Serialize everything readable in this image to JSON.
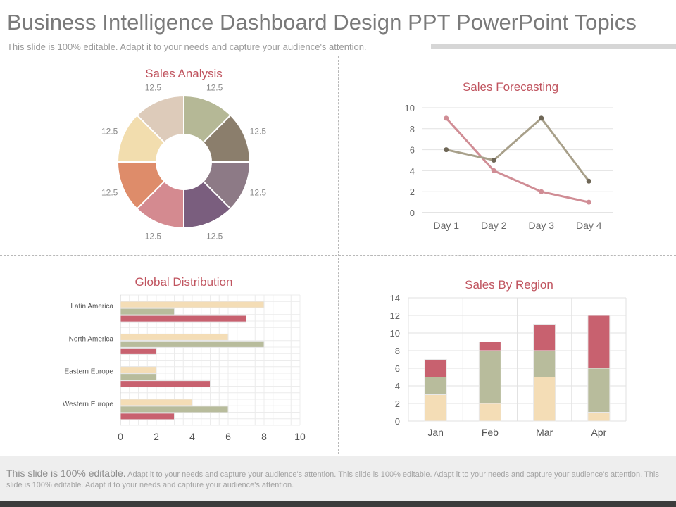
{
  "slide": {
    "title": "Business Intelligence Dashboard Design PPT PowerPoint Topics",
    "subtitle": "This slide is 100% editable. Adapt it to your needs and capture your audience's attention.",
    "footer_lead": "This slide is 100% editable.",
    "footer_rest": "Adapt it to your needs and capture your audience's attention. This slide is 100% editable. Adapt it to your needs and capture your audience's attention. This slide is 100% editable. Adapt it to your needs and capture your audience's attention."
  },
  "chart_data": [
    {
      "type": "pie",
      "title": "Sales Analysis",
      "slices": [
        {
          "value": 12.5,
          "label": "12.5",
          "color": "#b5b896"
        },
        {
          "value": 12.5,
          "label": "12.5",
          "color": "#8b7e6c"
        },
        {
          "value": 12.5,
          "label": "12.5",
          "color": "#8d7a86"
        },
        {
          "value": 12.5,
          "label": "12.5",
          "color": "#7a5e7e"
        },
        {
          "value": 12.5,
          "label": "12.5",
          "color": "#d48a90"
        },
        {
          "value": 12.5,
          "label": "12.5",
          "color": "#de8c6a"
        },
        {
          "value": 12.5,
          "label": "12.5",
          "color": "#f2ddae"
        },
        {
          "value": 12.5,
          "label": "12.5",
          "color": "#ddcbba"
        }
      ]
    },
    {
      "type": "line",
      "title": "Sales Forecasting",
      "categories": [
        "Day 1",
        "Day 2",
        "Day 3",
        "Day 4"
      ],
      "ylim": [
        0,
        10
      ],
      "yticks": [
        "0",
        "2",
        "4",
        "6",
        "8",
        "10"
      ],
      "grid": true,
      "series": [
        {
          "values": [
            9,
            4,
            2,
            1
          ],
          "color": "#d08d95"
        },
        {
          "values": [
            6,
            5,
            9,
            3
          ],
          "color": "#a8a08a",
          "marker": "#6e6656"
        }
      ]
    },
    {
      "type": "bar",
      "orientation": "horizontal",
      "title": "Global Distribution",
      "categories": [
        "Latin America",
        "North America",
        "Eastern Europe",
        "Western Europe"
      ],
      "xlim": [
        0,
        10
      ],
      "xticks": [
        "0",
        "2",
        "4",
        "6",
        "8",
        "10"
      ],
      "grid": true,
      "series": [
        {
          "values": [
            8,
            6,
            2,
            4
          ],
          "color": "#f4ddb6"
        },
        {
          "values": [
            3,
            8,
            2,
            6
          ],
          "color": "#b8bc9c"
        },
        {
          "values": [
            7,
            2,
            5,
            3
          ],
          "color": "#c8616f"
        }
      ]
    },
    {
      "type": "bar",
      "stacked": true,
      "title": "Sales By Region",
      "categories": [
        "Jan",
        "Feb",
        "Mar",
        "Apr"
      ],
      "ylim": [
        0,
        14
      ],
      "yticks": [
        "0",
        "2",
        "4",
        "6",
        "8",
        "10",
        "12",
        "14"
      ],
      "grid": true,
      "series": [
        {
          "values": [
            3,
            2,
            5,
            1
          ],
          "color": "#f4ddb6"
        },
        {
          "values": [
            2,
            6,
            3,
            5
          ],
          "color": "#b8bc9c"
        },
        {
          "values": [
            2,
            1,
            3,
            6
          ],
          "color": "#c8616f"
        }
      ]
    }
  ]
}
